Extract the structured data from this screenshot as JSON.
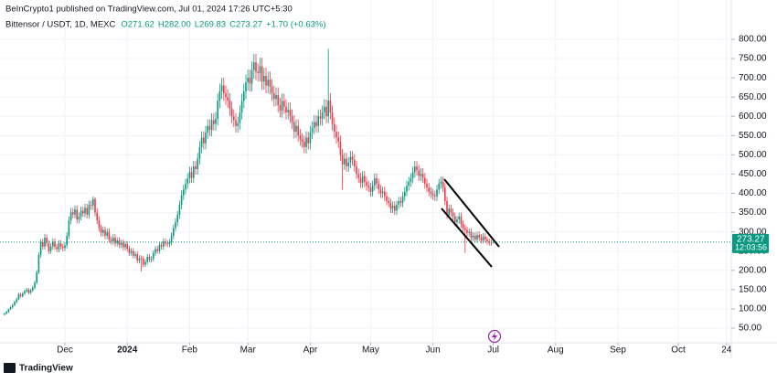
{
  "header": {
    "publisher": "BeInCrypto1 published on TradingView.com, Jul 01, 2024 17:26 UTC+5:30",
    "symbol": "Bittensor / USDT, 1D, MEXC",
    "legend_values": [
      "O271.62",
      "H282.00",
      "L269.83",
      "C273.27",
      "+1.70 (+0.63%)"
    ]
  },
  "chart_data": {
    "type": "candlestick",
    "up_color": "#089981",
    "down_color": "#f23645",
    "grid": true,
    "open": [
      85,
      88,
      92,
      99,
      104,
      110,
      118,
      125,
      138,
      133,
      140,
      146,
      150,
      142,
      148,
      155,
      168,
      195,
      240,
      273,
      262,
      285,
      270,
      250,
      262,
      275,
      261,
      255,
      270,
      262,
      258,
      265,
      290,
      330,
      351,
      345,
      358,
      332,
      340,
      355,
      348,
      362,
      345,
      370,
      368,
      385,
      350,
      330,
      310,
      297,
      305,
      290,
      300,
      280,
      275,
      285,
      270,
      278,
      266,
      272,
      260,
      268,
      256,
      245,
      250,
      238,
      242,
      225,
      232,
      230,
      215,
      222,
      235,
      228,
      230,
      245,
      255,
      250,
      266,
      262,
      275,
      270,
      268,
      273,
      290,
      310,
      325,
      344,
      370,
      395,
      410,
      425,
      439,
      455,
      440,
      470,
      463,
      490,
      520,
      545,
      530,
      558,
      575,
      565,
      590,
      580,
      594,
      640,
      665,
      680,
      660,
      650,
      641,
      620,
      600,
      590,
      575,
      582,
      610,
      640,
      665,
      688,
      700,
      685,
      720,
      740,
      715,
      712,
      730,
      690,
      705,
      680,
      695,
      677,
      660,
      645,
      655,
      629,
      615,
      640,
      625,
      610,
      617,
      600,
      585,
      560,
      575,
      550,
      540,
      534,
      520,
      545,
      530,
      558,
      570,
      585,
      575,
      600,
      594,
      610,
      625,
      600,
      641,
      610,
      580,
      560,
      545,
      534,
      500,
      475,
      490,
      470,
      480,
      495,
      487,
      470,
      450,
      440,
      427,
      445,
      430,
      420,
      415,
      404,
      420,
      439,
      425,
      410,
      400,
      405,
      392,
      380,
      375,
      360,
      368,
      355,
      370,
      380,
      375,
      392,
      405,
      420,
      430,
      439,
      455,
      470,
      460,
      445,
      451,
      440,
      425,
      415,
      404,
      400,
      395,
      392,
      410,
      425,
      430,
      415,
      380,
      344,
      360,
      350,
      340,
      325,
      332,
      340,
      320,
      310,
      305,
      297,
      300,
      285,
      290,
      280,
      292,
      285,
      278,
      288,
      280,
      275,
      272,
      271.62
    ],
    "high": [
      91,
      95,
      101,
      107,
      113,
      121,
      129,
      142,
      142,
      144,
      150,
      155,
      154,
      152,
      160,
      173,
      201,
      247,
      281,
      282,
      295,
      293,
      278,
      270,
      283,
      283,
      269,
      278,
      278,
      270,
      273,
      299,
      340,
      362,
      362,
      369,
      369,
      350,
      366,
      366,
      373,
      373,
      381,
      381,
      392,
      390,
      361,
      340,
      319,
      314,
      314,
      309,
      309,
      288,
      294,
      294,
      286,
      286,
      280,
      280,
      276,
      276,
      264,
      258,
      258,
      249,
      249,
      239,
      239,
      237,
      229,
      242,
      242,
      237,
      252,
      263,
      263,
      274,
      274,
      283,
      283,
      278,
      281,
      299,
      319,
      335,
      354,
      381,
      407,
      422,
      438,
      452,
      469,
      469,
      484,
      484,
      505,
      536,
      561,
      561,
      575,
      592,
      592,
      608,
      608,
      612,
      659,
      685,
      700,
      700,
      680,
      670,
      660,
      639,
      618,
      608,
      599,
      628,
      659,
      685,
      709,
      721,
      721,
      742,
      762,
      762,
      737,
      752,
      752,
      726,
      726,
      716,
      716,
      697,
      680,
      675,
      675,
      648,
      659,
      659,
      644,
      636,
      636,
      618,
      603,
      592,
      592,
      567,
      556,
      550,
      561,
      561,
      575,
      587,
      603,
      603,
      618,
      618,
      628,
      644,
      644,
      775,
      660,
      628,
      597,
      577,
      561,
      550,
      515,
      505,
      505,
      494,
      510,
      510,
      502,
      484,
      464,
      453,
      458,
      458,
      443,
      433,
      427,
      433,
      452,
      452,
      438,
      422,
      417,
      417,
      404,
      391,
      386,
      379,
      379,
      381,
      391,
      391,
      404,
      417,
      433,
      443,
      452,
      469,
      484,
      484,
      474,
      465,
      465,
      453,
      438,
      427,
      416,
      412,
      407,
      422,
      438,
      443,
      443,
      427,
      391,
      371,
      371,
      361,
      350,
      342,
      350,
      350,
      330,
      319,
      314,
      309,
      309,
      299,
      299,
      301,
      301,
      294,
      297,
      297,
      288,
      283,
      280,
      282
    ],
    "low": [
      83,
      86,
      90,
      97,
      101,
      107,
      115,
      122,
      129,
      129,
      136,
      142,
      138,
      138,
      144,
      151,
      164,
      190,
      233,
      254,
      254,
      262,
      243,
      243,
      254,
      253,
      247,
      247,
      254,
      250,
      250,
      257,
      281,
      320,
      335,
      335,
      322,
      322,
      330,
      338,
      338,
      335,
      335,
      357,
      357,
      340,
      320,
      301,
      288,
      288,
      281,
      281,
      272,
      267,
      267,
      262,
      262,
      258,
      258,
      252,
      252,
      248,
      238,
      238,
      231,
      231,
      218,
      218,
      197,
      209,
      209,
      215,
      221,
      221,
      223,
      238,
      243,
      243,
      254,
      254,
      262,
      260,
      260,
      265,
      281,
      301,
      315,
      334,
      359,
      383,
      398,
      412,
      426,
      427,
      427,
      449,
      449,
      475,
      504,
      514,
      514,
      541,
      548,
      548,
      563,
      563,
      576,
      621,
      645,
      640,
      630,
      622,
      601,
      582,
      572,
      558,
      558,
      565,
      592,
      621,
      645,
      667,
      664,
      664,
      698,
      694,
      690,
      691,
      669,
      669,
      660,
      660,
      657,
      640,
      626,
      626,
      610,
      597,
      597,
      606,
      592,
      592,
      582,
      567,
      543,
      543,
      534,
      524,
      518,
      504,
      504,
      514,
      514,
      541,
      553,
      558,
      558,
      576,
      576,
      592,
      582,
      582,
      592,
      563,
      543,
      529,
      518,
      485,
      410,
      461,
      456,
      456,
      466,
      472,
      456,
      437,
      427,
      414,
      414,
      417,
      407,
      403,
      392,
      392,
      407,
      412,
      398,
      388,
      388,
      380,
      369,
      364,
      349,
      349,
      344,
      344,
      359,
      364,
      364,
      380,
      393,
      407,
      417,
      426,
      441,
      446,
      432,
      432,
      427,
      412,
      403,
      392,
      388,
      383,
      380,
      380,
      398,
      412,
      403,
      369,
      334,
      334,
      340,
      330,
      315,
      315,
      322,
      310,
      301,
      245,
      288,
      288,
      276,
      276,
      272,
      272,
      276,
      270,
      270,
      272,
      267,
      264,
      264,
      269.83
    ],
    "close": [
      88,
      92,
      99,
      104,
      110,
      118,
      125,
      138,
      133,
      140,
      146,
      150,
      142,
      148,
      155,
      168,
      195,
      240,
      273,
      262,
      285,
      270,
      250,
      262,
      275,
      261,
      255,
      270,
      262,
      258,
      265,
      290,
      330,
      351,
      345,
      358,
      332,
      340,
      355,
      348,
      362,
      345,
      370,
      368,
      385,
      350,
      330,
      310,
      297,
      305,
      290,
      300,
      280,
      275,
      285,
      270,
      278,
      266,
      272,
      260,
      268,
      256,
      245,
      250,
      238,
      242,
      225,
      232,
      230,
      215,
      222,
      235,
      228,
      230,
      245,
      255,
      250,
      266,
      262,
      275,
      270,
      268,
      273,
      290,
      310,
      325,
      344,
      370,
      395,
      410,
      425,
      439,
      455,
      440,
      470,
      463,
      490,
      520,
      545,
      530,
      558,
      575,
      565,
      590,
      580,
      594,
      640,
      665,
      680,
      660,
      650,
      641,
      620,
      600,
      590,
      575,
      582,
      610,
      640,
      665,
      688,
      700,
      685,
      720,
      740,
      715,
      712,
      730,
      690,
      705,
      680,
      695,
      677,
      660,
      645,
      655,
      629,
      615,
      640,
      625,
      610,
      617,
      600,
      585,
      560,
      575,
      550,
      540,
      534,
      520,
      545,
      530,
      558,
      570,
      585,
      575,
      600,
      594,
      610,
      625,
      600,
      641,
      610,
      580,
      560,
      545,
      534,
      500,
      475,
      490,
      470,
      480,
      495,
      487,
      470,
      450,
      440,
      427,
      445,
      430,
      420,
      415,
      404,
      420,
      439,
      425,
      410,
      400,
      405,
      392,
      380,
      375,
      360,
      368,
      355,
      370,
      380,
      375,
      392,
      405,
      420,
      430,
      439,
      455,
      470,
      460,
      445,
      451,
      440,
      425,
      415,
      404,
      400,
      395,
      392,
      410,
      425,
      430,
      415,
      380,
      344,
      360,
      350,
      340,
      325,
      332,
      340,
      320,
      310,
      305,
      297,
      300,
      285,
      290,
      280,
      292,
      285,
      278,
      288,
      280,
      275,
      272,
      271.62,
      273.27
    ],
    "xlim": [
      -2.27,
      361.36
    ],
    "xticks": [
      {
        "value": 30,
        "label": "Dec"
      },
      {
        "value": 61,
        "label": "2024"
      },
      {
        "value": 92,
        "label": "Feb"
      },
      {
        "value": 121,
        "label": "Mar"
      },
      {
        "value": 152,
        "label": "Apr"
      },
      {
        "value": 182,
        "label": "May"
      },
      {
        "value": 213,
        "label": "Jun"
      },
      {
        "value": 243,
        "label": "Jul"
      },
      {
        "value": 274,
        "label": "Aug"
      },
      {
        "value": 305,
        "label": "Sep"
      },
      {
        "value": 335,
        "label": "Oct"
      },
      {
        "value": 359,
        "label": "24"
      }
    ],
    "ylim": [
      12,
      902
    ],
    "yticks": [
      {
        "value": 50,
        "label": "50.00"
      },
      {
        "value": 100,
        "label": "100.00"
      },
      {
        "value": 150,
        "label": "150.00"
      },
      {
        "value": 200,
        "label": "200.00"
      },
      {
        "value": 250,
        "label": "250.00"
      },
      {
        "value": 300,
        "label": "300.00"
      },
      {
        "value": 350,
        "label": "350.00"
      },
      {
        "value": 400,
        "label": "400.00"
      },
      {
        "value": 450,
        "label": "450.00"
      },
      {
        "value": 500,
        "label": "500.00"
      },
      {
        "value": 550,
        "label": "550.00"
      },
      {
        "value": 600,
        "label": "600.00"
      },
      {
        "value": 650,
        "label": "650.00"
      },
      {
        "value": 700,
        "label": "700.00"
      },
      {
        "value": 750,
        "label": "750.00"
      },
      {
        "value": 800,
        "label": "800.00"
      }
    ],
    "last_price_label": "273.27",
    "countdown": "12:03:56"
  },
  "footer": {
    "brand": "TradingView"
  }
}
